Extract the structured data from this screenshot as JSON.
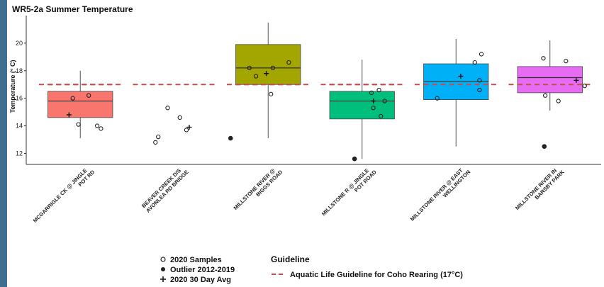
{
  "chart_data": {
    "type": "box",
    "title": "WR5-2a Summer Temperature",
    "ylabel": "Temperature (° C)",
    "xlabel": "",
    "ylim": [
      11.2,
      22.0
    ],
    "yticks": [
      12,
      14,
      16,
      18,
      20
    ],
    "categories": [
      [
        "MCGARRIGLE CK @ JINGLE",
        "POT RD"
      ],
      [
        "BEAVER CREEK D/S",
        "AVONLEA RD BRIDGE"
      ],
      [
        "MILLSTONE RIVER @",
        "BIGGS ROAD"
      ],
      [
        "MILLSTONE R @ JINGLE",
        "POT ROAD"
      ],
      [
        "MILLSTONE RIVER @ EAST",
        "WELLINGTON"
      ],
      [
        "MILLSTONE RIVER IN",
        "BARSBY PARK"
      ]
    ],
    "colors": [
      "#f8766d",
      null,
      "#a3a500",
      "#00bf7d",
      "#00b0f6",
      "#e76bf3"
    ],
    "boxes": [
      {
        "whisker_low": 13.1,
        "q1": 14.6,
        "median": 15.8,
        "q3": 16.5,
        "whisker_high": 18.0
      },
      null,
      {
        "whisker_low": 13.1,
        "q1": 17.0,
        "median": 18.2,
        "q3": 19.9,
        "whisker_high": 21.5
      },
      {
        "whisker_low": 11.6,
        "q1": 14.5,
        "median": 15.8,
        "q3": 16.5,
        "whisker_high": 18.8
      },
      {
        "whisker_low": 12.5,
        "q1": 15.9,
        "median": 17.2,
        "q3": 18.5,
        "whisker_high": 20.3
      },
      {
        "whisker_low": 15.1,
        "q1": 16.4,
        "median": 17.5,
        "q3": 18.3,
        "whisker_high": 20.2
      }
    ],
    "samples_2020": [
      [
        {
          "dx": -0.08,
          "y": 16.0
        },
        {
          "dx": 0.09,
          "y": 16.2
        },
        {
          "dx": -0.02,
          "y": 14.1
        },
        {
          "dx": 0.18,
          "y": 14.0
        },
        {
          "dx": 0.22,
          "y": 13.8
        }
      ],
      [
        {
          "dx": -0.2,
          "y": 12.8
        },
        {
          "dx": -0.17,
          "y": 13.2
        },
        {
          "dx": -0.07,
          "y": 15.3
        },
        {
          "dx": 0.06,
          "y": 14.6
        },
        {
          "dx": 0.13,
          "y": 13.7
        }
      ],
      [
        {
          "dx": -0.2,
          "y": 18.2
        },
        {
          "dx": -0.13,
          "y": 17.6
        },
        {
          "dx": 0.05,
          "y": 18.2
        },
        {
          "dx": 0.22,
          "y": 18.6
        },
        {
          "dx": 0.03,
          "y": 16.3
        }
      ],
      [
        {
          "dx": 0.1,
          "y": 16.4
        },
        {
          "dx": 0.18,
          "y": 16.6
        },
        {
          "dx": 0.24,
          "y": 15.8
        },
        {
          "dx": 0.12,
          "y": 15.3
        },
        {
          "dx": 0.2,
          "y": 14.7
        }
      ],
      [
        {
          "dx": -0.2,
          "y": 16.0
        },
        {
          "dx": 0.2,
          "y": 18.6
        },
        {
          "dx": 0.27,
          "y": 19.2
        },
        {
          "dx": 0.25,
          "y": 17.3
        },
        {
          "dx": 0.25,
          "y": 16.6
        }
      ],
      [
        {
          "dx": -0.07,
          "y": 18.9
        },
        {
          "dx": 0.17,
          "y": 18.7
        },
        {
          "dx": -0.05,
          "y": 16.2
        },
        {
          "dx": 0.09,
          "y": 15.8
        },
        {
          "dx": 0.37,
          "y": 16.9
        }
      ]
    ],
    "outliers_2012_2019": [
      [],
      [],
      [
        {
          "dx": -0.4,
          "y": 13.1
        }
      ],
      [
        {
          "dx": -0.08,
          "y": 11.6
        }
      ],
      [],
      [
        {
          "dx": -0.06,
          "y": 12.5
        }
      ]
    ],
    "avg_30day_2020": [
      {
        "dx": -0.12,
        "y": 14.8
      },
      {
        "dx": 0.16,
        "y": 13.9
      },
      {
        "dx": -0.02,
        "y": 17.8
      },
      {
        "dx": 0.12,
        "y": 15.8
      },
      {
        "dx": 0.05,
        "y": 17.6
      },
      {
        "dx": 0.28,
        "y": 17.3
      }
    ],
    "guideline_value": 17.0,
    "guideline_color": "#c0504d",
    "legend": {
      "placement": "bottom",
      "items": [
        "2020 Samples",
        "Outlier 2012-2019",
        "2020 30 Day Avg"
      ],
      "guideline_title": "Guideline",
      "guideline_label": "Aquatic Life Guideline for Coho Rearing (17°C)"
    }
  }
}
